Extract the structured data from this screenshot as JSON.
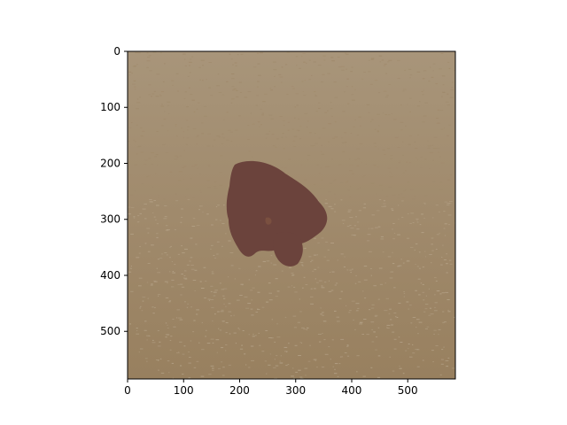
{
  "chart_data": {
    "type": "heatmap",
    "title": "",
    "xlabel": "",
    "ylabel": "",
    "x_range": [
      0,
      585
    ],
    "y_range": [
      0,
      585
    ],
    "y_inverted": true,
    "grid": false,
    "x_ticks": [
      0,
      100,
      200,
      300,
      400,
      500
    ],
    "y_ticks": [
      0,
      100,
      200,
      300,
      400,
      500
    ],
    "x_tick_labels": [
      "0",
      "100",
      "200",
      "300",
      "400",
      "500"
    ],
    "y_tick_labels": [
      "0",
      "100",
      "200",
      "300",
      "400",
      "500"
    ],
    "colors": {
      "background_light": "#a8957a",
      "background_mid": "#a08a6c",
      "background_dark": "#98805f",
      "speckle": "#b29f84",
      "lesion": "#6b433c"
    },
    "lesion_region": {
      "main_blob_center": [
        260,
        240
      ],
      "small_blob_center": [
        290,
        335
      ]
    }
  }
}
